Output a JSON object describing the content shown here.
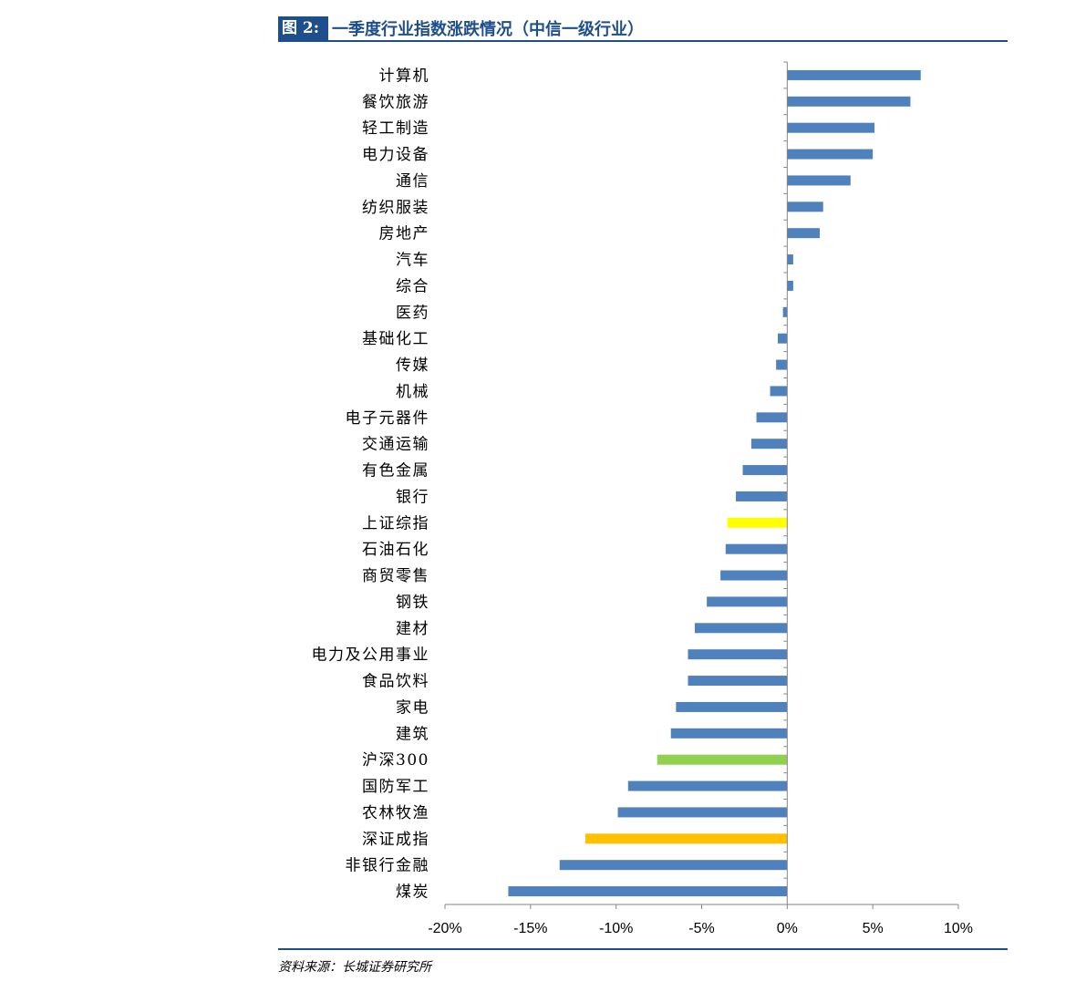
{
  "figure": {
    "label": "图 2:",
    "title": "一季度行业指数涨跌情况（中信一级行业）"
  },
  "source": "资料来源：长城证券研究所",
  "colors": {
    "header": "#1f4e8c",
    "bar_default": "#4f81bd",
    "bar_shanghai": "#ffff00",
    "bar_hs300": "#92d050",
    "bar_shenzhen": "#ffc000",
    "axis": "#868686"
  },
  "chart_data": {
    "type": "bar",
    "orientation": "horizontal",
    "title": "一季度行业指数涨跌情况（中信一级行业）",
    "xlabel": "",
    "ylabel": "",
    "xlim": [
      -0.2,
      0.1
    ],
    "xticks": [
      -0.2,
      -0.15,
      -0.1,
      -0.05,
      0,
      0.05,
      0.1
    ],
    "xtick_labels": [
      "-20%",
      "-15%",
      "-10%",
      "-5%",
      "0%",
      "5%",
      "10%"
    ],
    "grid": false,
    "legend": "none",
    "categories": [
      "计算机",
      "餐饮旅游",
      "轻工制造",
      "电力设备",
      "通信",
      "纺织服装",
      "房地产",
      "汽车",
      "综合",
      "医药",
      "基础化工",
      "传媒",
      "机械",
      "电子元器件",
      "交通运输",
      "有色金属",
      "银行",
      "上证综指",
      "石油石化",
      "商贸零售",
      "钢铁",
      "建材",
      "电力及公用事业",
      "食品饮料",
      "家电",
      "建筑",
      "沪深300",
      "国防军工",
      "农林牧渔",
      "深证成指",
      "非银行金融",
      "煤炭"
    ],
    "values": [
      0.078,
      0.072,
      0.051,
      0.05,
      0.037,
      0.021,
      0.019,
      0.0035,
      0.0035,
      -0.0025,
      -0.0055,
      -0.0065,
      -0.01,
      -0.018,
      -0.021,
      -0.026,
      -0.03,
      -0.035,
      -0.036,
      -0.039,
      -0.047,
      -0.054,
      -0.058,
      -0.058,
      -0.065,
      -0.068,
      -0.076,
      -0.093,
      -0.099,
      -0.118,
      -0.133,
      -0.163
    ],
    "highlights": {
      "上证综指": "#ffff00",
      "沪深300": "#92d050",
      "深证成指": "#ffc000"
    }
  }
}
